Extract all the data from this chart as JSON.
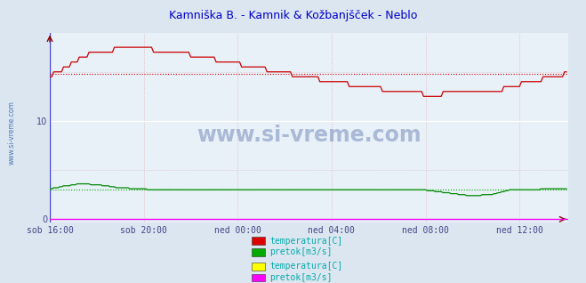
{
  "title": "Kamniška B. - Kamnik & Kožbanjšček - Neblo",
  "title_color": "#0000cc",
  "bg_color": "#dce6f0",
  "plot_bg_color": "#e8f0f8",
  "grid_color_h": "#ffffff",
  "grid_color_v": "#ddaaaa",
  "x_tick_labels": [
    "sob 16:00",
    "sob 20:00",
    "ned 00:00",
    "ned 04:00",
    "ned 08:00",
    "ned 12:00"
  ],
  "x_tick_positions": [
    0,
    48,
    96,
    144,
    192,
    240
  ],
  "x_max": 265,
  "y_ticks": [
    0,
    10
  ],
  "y_min": -0.3,
  "y_max": 19,
  "watermark": "www.si-vreme.com",
  "legend_items": [
    {
      "label": "temperatura[C]",
      "color": "#dd0000"
    },
    {
      "label": "pretok[m3/s]",
      "color": "#00aa00"
    },
    {
      "label": "temperatura[C]",
      "color": "#ffff00"
    },
    {
      "label": "pretok[m3/s]",
      "color": "#ff00ff"
    }
  ],
  "legend_text_color": "#00aaaa",
  "tick_label_color": "#444488",
  "axis_color": "#4444cc",
  "arrow_color": "#880000",
  "line1_color": "#cc0000",
  "line2_color": "#008800",
  "line3_color": "#ffff00",
  "line4_color": "#ff00ff",
  "avg1_color": "#dd0000",
  "avg2_color": "#00aa00",
  "sidewater_color": "#4488cc",
  "temp1_start": 14.5,
  "temp1_peak": 17.5,
  "temp1_peak_t": 40,
  "temp1_mid": 13.0,
  "temp1_end": 14.8,
  "pretok1_base": 3.1,
  "pretok1_bump": 3.6,
  "pretok1_dip": 2.4,
  "n_points": 265
}
